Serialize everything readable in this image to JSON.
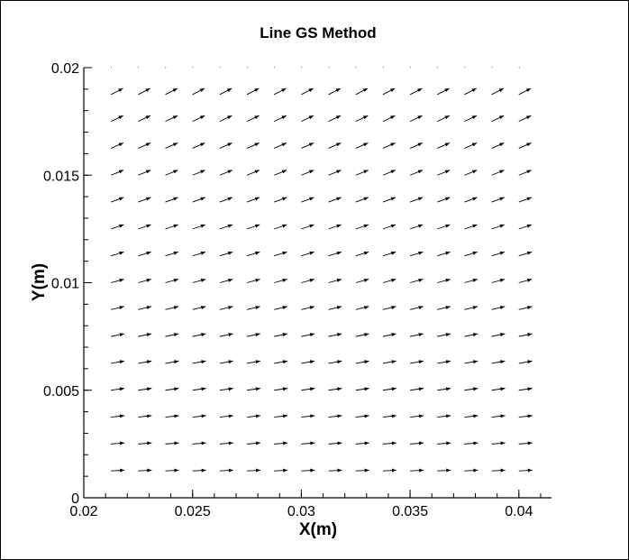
{
  "chart_data": {
    "type": "vector-field",
    "title": "Line GS Method",
    "xlabel": "X(m)",
    "ylabel": "Y(m)",
    "xlim": [
      0.02,
      0.0415
    ],
    "ylim": [
      0,
      0.02
    ],
    "xticks": [
      "0.02",
      "0.025",
      "0.03",
      "0.035",
      "0.04"
    ],
    "xtick_values": [
      0.02,
      0.025,
      0.03,
      0.035,
      0.04
    ],
    "yticks": [
      "0",
      "0.005",
      "0.01",
      "0.015",
      "0.02"
    ],
    "ytick_values": [
      0,
      0.005,
      0.01,
      0.015,
      0.02
    ],
    "grid": false,
    "field": {
      "x_nodes": [
        0.02125,
        0.0225,
        0.02375,
        0.025,
        0.02625,
        0.0275,
        0.02875,
        0.03,
        0.03125,
        0.0325,
        0.03375,
        0.035,
        0.03625,
        0.0375,
        0.03875,
        0.04
      ],
      "y_nodes": [
        0.00125,
        0.0025,
        0.00375,
        0.005,
        0.00625,
        0.0075,
        0.00875,
        0.01,
        0.01125,
        0.0125,
        0.01375,
        0.015,
        0.01625,
        0.0175,
        0.01875,
        0.02
      ],
      "u_scale": 1.0,
      "angle_bottom_deg": 3,
      "angle_top_deg": 27,
      "top_row_magnitude": 0.05,
      "color": "#000000"
    }
  }
}
